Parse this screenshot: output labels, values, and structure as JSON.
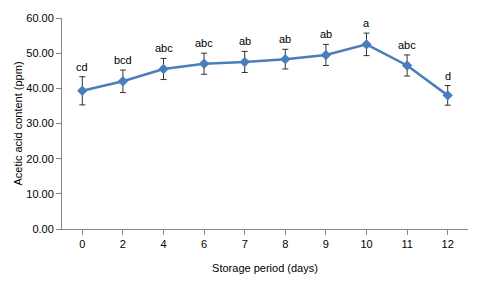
{
  "chart_data": {
    "type": "line",
    "x_label": "Storage period (days)",
    "y_label": "Acetic acid content (ppm)",
    "categories": [
      "0",
      "2",
      "4",
      "6",
      "7",
      "8",
      "9",
      "10",
      "11",
      "12"
    ],
    "values": [
      39.3,
      42.0,
      45.5,
      47.0,
      47.5,
      48.3,
      49.5,
      52.5,
      46.5,
      38.0
    ],
    "errors": [
      4.0,
      3.2,
      3.0,
      3.0,
      3.0,
      2.8,
      3.0,
      3.2,
      3.0,
      2.8
    ],
    "annotations": [
      "cd",
      "bcd",
      "abc",
      "abc",
      "ab",
      "ab",
      "ab",
      "a",
      "abc",
      "d"
    ],
    "color": "#4a7ebb",
    "marker": "diamond",
    "ylim": [
      0,
      60
    ],
    "yticks": [
      {
        "value": 0,
        "label": "0.00"
      },
      {
        "value": 10,
        "label": "10.00"
      },
      {
        "value": 20,
        "label": "20.00"
      },
      {
        "value": 30,
        "label": "30.00"
      },
      {
        "value": 40,
        "label": "40.00"
      },
      {
        "value": 50,
        "label": "50.00"
      },
      {
        "value": 60,
        "label": "60.00"
      }
    ],
    "grid": false
  }
}
